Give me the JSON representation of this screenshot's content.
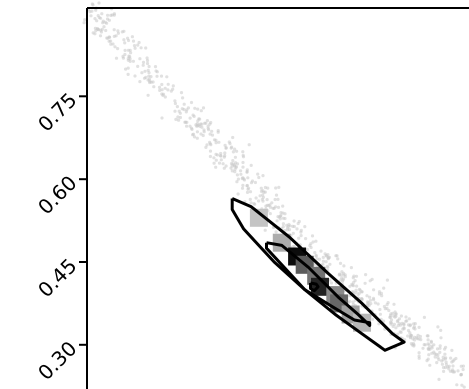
{
  "chart_data": {
    "type": "scatter",
    "subtype": "corner-plot-2d-density-with-contours",
    "title": "",
    "xlabel": "",
    "ylabel": "",
    "y_ticks": [
      0.3,
      0.45,
      0.6,
      0.75
    ],
    "y_tick_labels": [
      "0.30",
      "0.45",
      "0.60",
      "0.75"
    ],
    "ylim": [
      0.22,
      0.91
    ],
    "xlim": [
      0,
      1
    ],
    "grid": false,
    "legend": "none",
    "colors": {
      "points": "#c8c8c8",
      "contour": "#000000",
      "density_low": "#e6e6e6",
      "density_high": "#000000"
    },
    "scatter_trend": {
      "x": [
        0.02,
        0.1,
        0.2,
        0.3,
        0.4,
        0.5,
        0.6,
        0.7,
        0.8,
        0.9,
        0.98
      ],
      "y": [
        0.905,
        0.835,
        0.765,
        0.69,
        0.615,
        0.535,
        0.46,
        0.395,
        0.34,
        0.295,
        0.245
      ]
    },
    "density_cells": [
      {
        "x": 0.45,
        "y": 0.53,
        "level": 0.15
      },
      {
        "x": 0.51,
        "y": 0.485,
        "level": 0.25
      },
      {
        "x": 0.55,
        "y": 0.46,
        "level": 0.95
      },
      {
        "x": 0.57,
        "y": 0.445,
        "level": 0.6
      },
      {
        "x": 0.6,
        "y": 0.425,
        "level": 0.5
      },
      {
        "x": 0.61,
        "y": 0.405,
        "level": 0.85
      },
      {
        "x": 0.65,
        "y": 0.39,
        "level": 0.4
      },
      {
        "x": 0.66,
        "y": 0.375,
        "level": 0.55
      },
      {
        "x": 0.69,
        "y": 0.355,
        "level": 0.3
      },
      {
        "x": 0.72,
        "y": 0.34,
        "level": 0.2
      }
    ],
    "contours": [
      {
        "level": "outer",
        "points": [
          [
            0.38,
            0.565
          ],
          [
            0.43,
            0.55
          ],
          [
            0.53,
            0.495
          ],
          [
            0.63,
            0.43
          ],
          [
            0.72,
            0.375
          ],
          [
            0.8,
            0.32
          ],
          [
            0.83,
            0.305
          ],
          [
            0.78,
            0.29
          ],
          [
            0.72,
            0.32
          ],
          [
            0.65,
            0.355
          ],
          [
            0.57,
            0.4
          ],
          [
            0.49,
            0.45
          ],
          [
            0.41,
            0.51
          ],
          [
            0.38,
            0.545
          ],
          [
            0.38,
            0.565
          ]
        ]
      },
      {
        "level": "middle",
        "points": [
          [
            0.47,
            0.485
          ],
          [
            0.51,
            0.48
          ],
          [
            0.58,
            0.44
          ],
          [
            0.66,
            0.385
          ],
          [
            0.71,
            0.355
          ],
          [
            0.74,
            0.335
          ],
          [
            0.74,
            0.34
          ],
          [
            0.7,
            0.345
          ],
          [
            0.64,
            0.37
          ],
          [
            0.57,
            0.4
          ],
          [
            0.51,
            0.445
          ],
          [
            0.47,
            0.475
          ],
          [
            0.47,
            0.485
          ]
        ]
      },
      {
        "level": "inner",
        "points": [
          [
            0.585,
            0.412
          ],
          [
            0.6,
            0.41
          ],
          [
            0.605,
            0.405
          ],
          [
            0.595,
            0.398
          ],
          [
            0.585,
            0.402
          ],
          [
            0.585,
            0.412
          ]
        ]
      }
    ]
  }
}
